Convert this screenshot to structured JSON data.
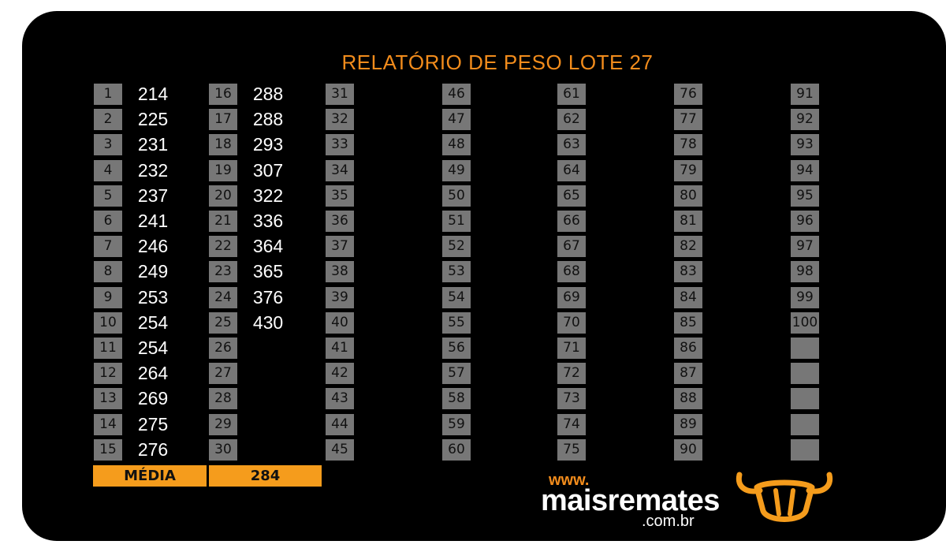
{
  "title": "RELATÓRIO DE PESO LOTE 27",
  "columns": [
    {
      "numbers": [
        "1",
        "2",
        "3",
        "4",
        "5",
        "6",
        "7",
        "8",
        "9",
        "10",
        "11",
        "12",
        "13",
        "14",
        "15"
      ],
      "weights": [
        "214",
        "225",
        "231",
        "232",
        "237",
        "241",
        "246",
        "249",
        "253",
        "254",
        "254",
        "264",
        "269",
        "275",
        "276"
      ]
    },
    {
      "numbers": [
        "16",
        "17",
        "18",
        "19",
        "20",
        "21",
        "22",
        "23",
        "24",
        "25",
        "26",
        "27",
        "28",
        "29",
        "30"
      ],
      "weights": [
        "288",
        "288",
        "293",
        "307",
        "322",
        "336",
        "364",
        "365",
        "376",
        "430",
        "",
        "",
        "",
        "",
        ""
      ]
    },
    {
      "numbers": [
        "31",
        "32",
        "33",
        "34",
        "35",
        "36",
        "37",
        "38",
        "39",
        "40",
        "41",
        "42",
        "43",
        "44",
        "45"
      ],
      "weights": []
    },
    {
      "numbers": [
        "46",
        "47",
        "48",
        "49",
        "50",
        "51",
        "52",
        "53",
        "54",
        "55",
        "56",
        "57",
        "58",
        "59",
        "60"
      ],
      "weights": []
    },
    {
      "numbers": [
        "61",
        "62",
        "63",
        "64",
        "65",
        "66",
        "67",
        "68",
        "69",
        "70",
        "71",
        "72",
        "73",
        "74",
        "75"
      ],
      "weights": []
    },
    {
      "numbers": [
        "76",
        "77",
        "78",
        "79",
        "80",
        "81",
        "82",
        "83",
        "84",
        "85",
        "86",
        "87",
        "88",
        "89",
        "90"
      ],
      "weights": []
    },
    {
      "numbers": [
        "91",
        "92",
        "93",
        "94",
        "95",
        "96",
        "97",
        "98",
        "99",
        "100",
        "",
        "",
        "",
        "",
        ""
      ],
      "weights": []
    }
  ],
  "average": {
    "label": "MÉDIA",
    "value": "284"
  },
  "logo": {
    "www": "www.",
    "name": "maisremates",
    "domain": ".com.br"
  },
  "colors": {
    "accent": "#f59c1c",
    "cell": "#777777",
    "background": "#000000"
  }
}
